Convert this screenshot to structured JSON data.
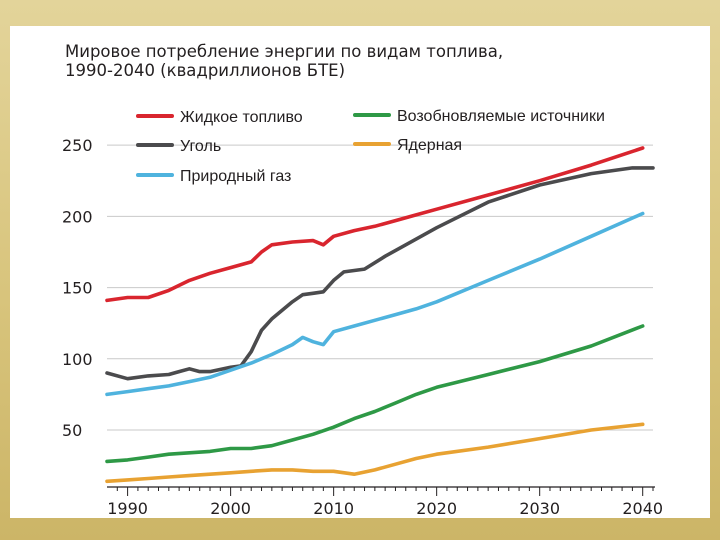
{
  "chart_data": {
    "type": "line",
    "title": [
      "Мировое потребление энергии по видам топлива,",
      "1990-2040 (квадриллионов БТЕ)"
    ],
    "xlabel": "",
    "ylabel": "",
    "xlim": [
      1988,
      2041
    ],
    "ylim": [
      10,
      255
    ],
    "x_ticks": [
      1990,
      2000,
      2010,
      2020,
      2030,
      2040
    ],
    "y_ticks": [
      50,
      100,
      150,
      200,
      250
    ],
    "grid": "horizontal",
    "legend": [
      {
        "name": "Жидкое топливо",
        "color": "#d9252e"
      },
      {
        "name": "Уголь",
        "color": "#4b4b4d"
      },
      {
        "name": "Природный газ",
        "color": "#4fb3de"
      },
      {
        "name": "Возобновляемые источники",
        "color": "#2e9946"
      },
      {
        "name": "Ядерная",
        "color": "#e8a232"
      }
    ],
    "series": [
      {
        "name": "Жидкое топливо",
        "color": "#d9252e",
        "x": [
          1988,
          1990,
          1992,
          1994,
          1996,
          1998,
          2000,
          2002,
          2003,
          2004,
          2006,
          2008,
          2009,
          2010,
          2012,
          2014,
          2016,
          2018,
          2020,
          2025,
          2030,
          2035,
          2040
        ],
        "y": [
          141,
          143,
          143,
          148,
          155,
          160,
          164,
          168,
          175,
          180,
          182,
          183,
          180,
          186,
          190,
          193,
          197,
          201,
          205,
          215,
          225,
          236,
          248
        ]
      },
      {
        "name": "Уголь",
        "color": "#4b4b4d",
        "x": [
          1988,
          1990,
          1992,
          1994,
          1995,
          1996,
          1997,
          1998,
          2000,
          2001,
          2002,
          2003,
          2004,
          2006,
          2007,
          2008,
          2009,
          2010,
          2011,
          2013,
          2015,
          2017,
          2020,
          2025,
          2030,
          2035,
          2039,
          2041
        ],
        "y": [
          90,
          86,
          88,
          89,
          91,
          93,
          91,
          91,
          94,
          95,
          105,
          120,
          128,
          140,
          145,
          146,
          147,
          155,
          161,
          163,
          172,
          180,
          192,
          210,
          222,
          230,
          234,
          234
        ]
      },
      {
        "name": "Природный газ",
        "color": "#4fb3de",
        "x": [
          1988,
          1990,
          1992,
          1994,
          1996,
          1998,
          2000,
          2002,
          2004,
          2006,
          2007,
          2008,
          2009,
          2010,
          2012,
          2014,
          2016,
          2018,
          2020,
          2025,
          2030,
          2035,
          2040
        ],
        "y": [
          75,
          77,
          79,
          81,
          84,
          87,
          92,
          97,
          103,
          110,
          115,
          112,
          110,
          119,
          123,
          127,
          131,
          135,
          140,
          155,
          170,
          186,
          202
        ]
      },
      {
        "name": "Возобновляемые источники",
        "color": "#2e9946",
        "x": [
          1988,
          1990,
          1992,
          1994,
          1996,
          1998,
          2000,
          2002,
          2004,
          2006,
          2008,
          2010,
          2012,
          2014,
          2016,
          2018,
          2020,
          2025,
          2030,
          2035,
          2040
        ],
        "y": [
          28,
          29,
          31,
          33,
          34,
          35,
          37,
          37,
          39,
          43,
          47,
          52,
          58,
          63,
          69,
          75,
          80,
          89,
          98,
          109,
          123
        ]
      },
      {
        "name": "Ядерная",
        "color": "#e8a232",
        "x": [
          1988,
          1990,
          1992,
          1994,
          1996,
          1998,
          2000,
          2002,
          2004,
          2006,
          2008,
          2010,
          2012,
          2014,
          2016,
          2018,
          2020,
          2025,
          2030,
          2035,
          2040
        ],
        "y": [
          14,
          15,
          16,
          17,
          18,
          19,
          20,
          21,
          22,
          22,
          21,
          21,
          19,
          22,
          26,
          30,
          33,
          38,
          44,
          50,
          54
        ]
      }
    ]
  }
}
